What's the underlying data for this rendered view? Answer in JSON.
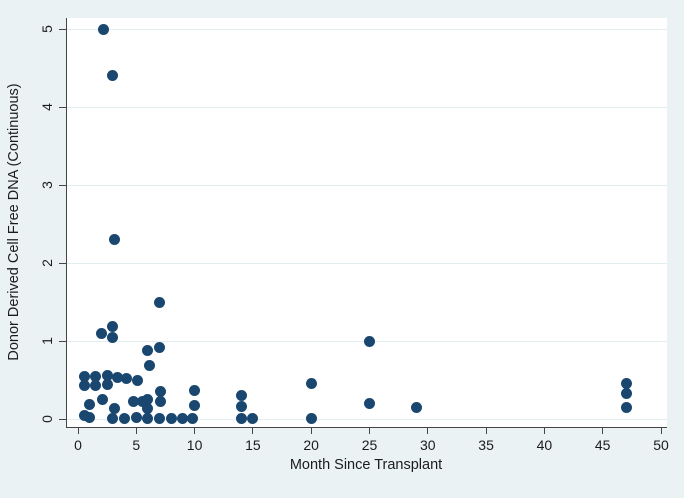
{
  "chart_data": {
    "type": "scatter",
    "title": "",
    "xlabel": "Month Since Transplant",
    "ylabel": "Donor Derived Cell Free DNA (Continuous)",
    "xlim": [
      0,
      50
    ],
    "ylim": [
      0,
      5
    ],
    "x_ticks": [
      0,
      5,
      10,
      15,
      20,
      25,
      30,
      35,
      40,
      45,
      50
    ],
    "y_ticks": [
      0,
      1,
      2,
      3,
      4,
      5
    ],
    "grid": "horizontal-only",
    "legend": "none",
    "marker_color": "#1a476f",
    "background_color": "#eaf2f3",
    "plot_background": "#ffffff",
    "grid_color": "#e2eef0",
    "points": [
      [
        2.2,
        5.0
      ],
      [
        3.0,
        4.4
      ],
      [
        3.1,
        2.3
      ],
      [
        7.0,
        1.5
      ],
      [
        3.0,
        1.18
      ],
      [
        2.0,
        1.1
      ],
      [
        3.0,
        1.05
      ],
      [
        25.0,
        1.0
      ],
      [
        7.0,
        0.92
      ],
      [
        6.0,
        0.88
      ],
      [
        6.1,
        0.69
      ],
      [
        0.6,
        0.55
      ],
      [
        0.6,
        0.43
      ],
      [
        1.5,
        0.55
      ],
      [
        1.5,
        0.43
      ],
      [
        2.5,
        0.56
      ],
      [
        2.5,
        0.44
      ],
      [
        3.4,
        0.53
      ],
      [
        4.2,
        0.52
      ],
      [
        5.1,
        0.5
      ],
      [
        20.0,
        0.45
      ],
      [
        47.0,
        0.45
      ],
      [
        47.0,
        0.33
      ],
      [
        10.0,
        0.37
      ],
      [
        7.1,
        0.35
      ],
      [
        14.0,
        0.3
      ],
      [
        6.0,
        0.25
      ],
      [
        2.1,
        0.25
      ],
      [
        4.8,
        0.23
      ],
      [
        5.5,
        0.23
      ],
      [
        7.1,
        0.23
      ],
      [
        25.0,
        0.2
      ],
      [
        1.0,
        0.18
      ],
      [
        10.0,
        0.17
      ],
      [
        14.0,
        0.16
      ],
      [
        29.0,
        0.15
      ],
      [
        47.0,
        0.15
      ],
      [
        3.1,
        0.14
      ],
      [
        6.0,
        0.13
      ],
      [
        0.6,
        0.05
      ],
      [
        1.0,
        0.02
      ],
      [
        3.0,
        0.01
      ],
      [
        4.0,
        0.01
      ],
      [
        5.0,
        0.02
      ],
      [
        6.0,
        0.01
      ],
      [
        7.0,
        0.01
      ],
      [
        8.0,
        0.01
      ],
      [
        9.0,
        0.01
      ],
      [
        9.8,
        0.01
      ],
      [
        14.0,
        0.01
      ],
      [
        15.0,
        0.01
      ],
      [
        20.0,
        0.01
      ]
    ]
  }
}
